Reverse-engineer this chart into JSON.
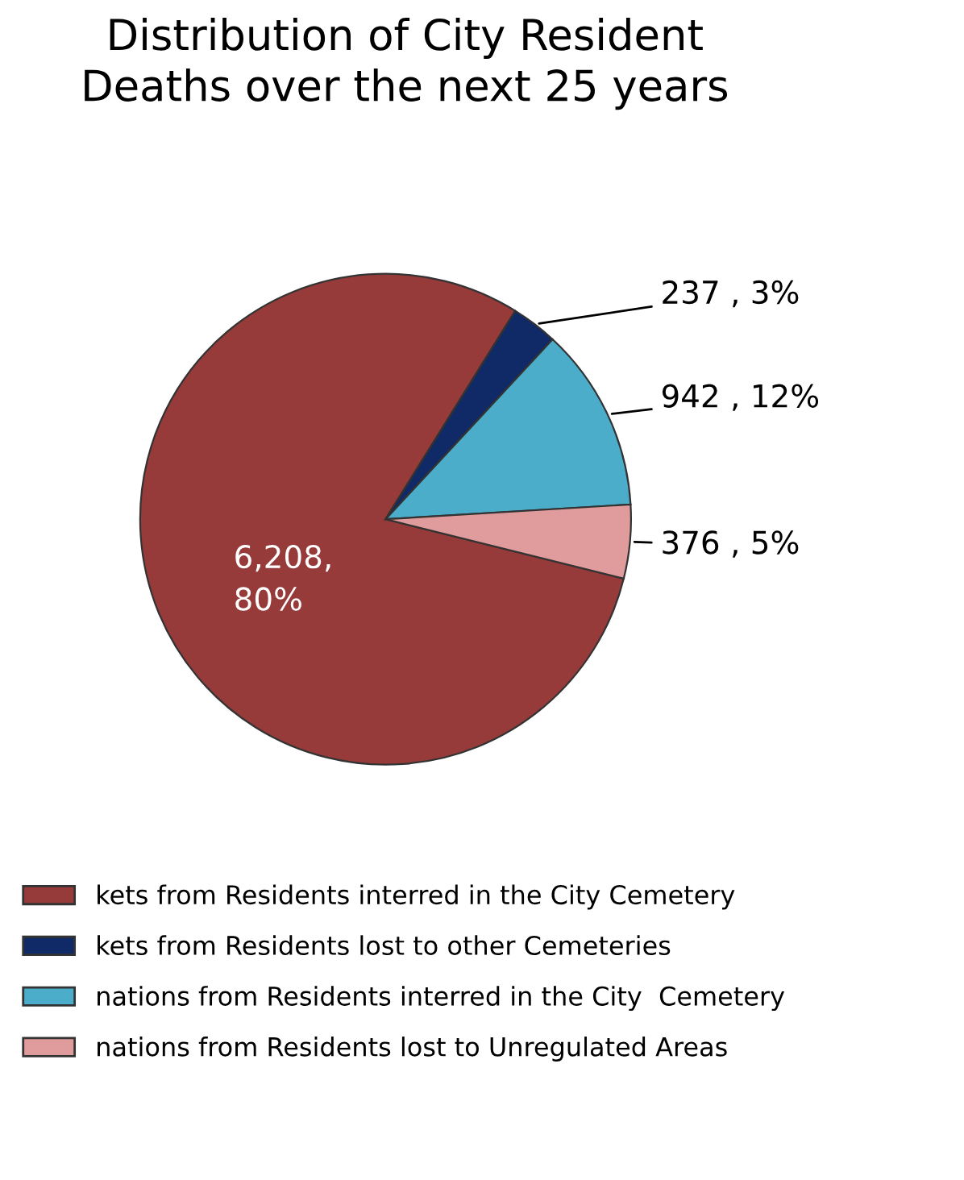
{
  "chart_data": {
    "type": "pie",
    "title": "Distribution of City Resident\nDeaths over the next 25 years",
    "categories": [
      "kets from Residents interred in the City Cemetery",
      "kets from Residents lost to other Cemeteries",
      "nations from Residents interred in the City  Cemetery",
      "nations from Residents lost to Unregulated Areas"
    ],
    "values": [
      6208,
      237,
      942,
      376
    ],
    "value_labels": [
      "6,208,\n80%",
      "237 , 3%",
      "942 , 12%",
      "376 , 5%"
    ],
    "colors": [
      "#973b3a",
      "#0f2a66",
      "#4badc9",
      "#e09c9c"
    ],
    "legend": "bottom"
  }
}
